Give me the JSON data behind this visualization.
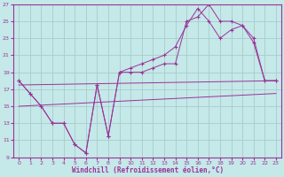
{
  "xlabel": "Windchill (Refroidissement éolien,°C)",
  "bg_color": "#c5e8e8",
  "grid_color": "#a8cccc",
  "line_color": "#993399",
  "spine_color": "#993399",
  "xlim": [
    -0.5,
    23.5
  ],
  "ylim": [
    9,
    27
  ],
  "xticks": [
    0,
    1,
    2,
    3,
    4,
    5,
    6,
    7,
    8,
    9,
    10,
    11,
    12,
    13,
    14,
    15,
    16,
    17,
    18,
    19,
    20,
    21,
    22,
    23
  ],
  "yticks": [
    9,
    11,
    13,
    15,
    17,
    19,
    21,
    23,
    25,
    27
  ],
  "line1_x": [
    0,
    1,
    2,
    3,
    4,
    5,
    6,
    7,
    8,
    9,
    10,
    11,
    12,
    13,
    14,
    15,
    16,
    17,
    18,
    19,
    20,
    21,
    22,
    23
  ],
  "line1_y": [
    18,
    16.5,
    15,
    13,
    13,
    10.5,
    9.5,
    17.5,
    11.5,
    19,
    19,
    19,
    19.5,
    20,
    20,
    25,
    25.5,
    27,
    25,
    25,
    24.5,
    23,
    18,
    18
  ],
  "line2_x": [
    0,
    1,
    2,
    3,
    4,
    5,
    6,
    7,
    8,
    9,
    10,
    11,
    12,
    13,
    14,
    15,
    16,
    17,
    18,
    19,
    20,
    21,
    22,
    23
  ],
  "line2_y": [
    18,
    16.5,
    15,
    13,
    13,
    10.5,
    9.5,
    17.5,
    11.5,
    19,
    19.5,
    20,
    20.5,
    21,
    22,
    24.5,
    26.5,
    25,
    23,
    24,
    24.5,
    22.5,
    18,
    18
  ],
  "line3_x": [
    0,
    23
  ],
  "line3_y": [
    17.5,
    18
  ],
  "line4_x": [
    0,
    23
  ],
  "line4_y": [
    15,
    16.5
  ]
}
